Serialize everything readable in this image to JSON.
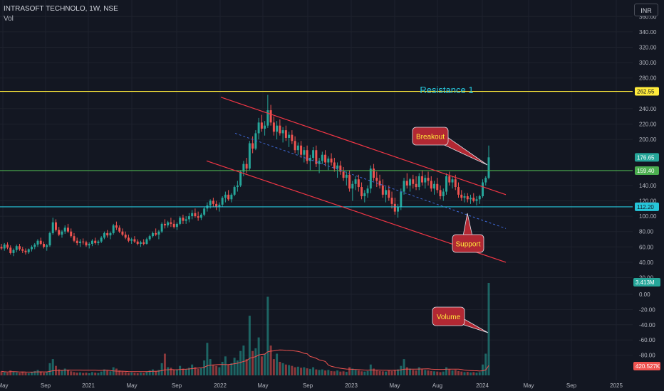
{
  "header": {
    "title": "INTRASOFT TECHNOLO, 1W, NSE",
    "volume_label": "Vol",
    "currency_button": "INR"
  },
  "colors": {
    "background": "#131722",
    "bull": "#26a69a",
    "bear": "#ef5350",
    "resistance": "#ffeb3b",
    "green_level": "#4caf50",
    "support_level": "#26c6da",
    "channel": "#f23645",
    "callout": "#b22833"
  },
  "chart_data": {
    "type": "candlestick",
    "title": "INTRASOFT TECHNOLO, 1W, NSE",
    "y_axis": {
      "ticks": [
        360,
        340,
        320,
        300,
        280,
        240,
        220,
        200,
        140,
        120,
        100,
        80,
        60,
        40,
        20
      ],
      "tick_labels": [
        "360.00",
        "340.00",
        "320.00",
        "300.00",
        "280.00",
        "240.00",
        "220.00",
        "200.00",
        "140.00",
        "120.00",
        "100.00",
        "80.00",
        "60.00",
        "40.00",
        "20.00"
      ],
      "volume_ticks": [
        0,
        -20,
        -40,
        -60,
        -80
      ],
      "volume_tick_labels": [
        "0.00",
        "-20.00",
        "-40.00",
        "-60.00",
        "-80.00"
      ]
    },
    "x_axis": {
      "tick_labels": [
        "May",
        "Sep",
        "2021",
        "May",
        "Sep",
        "2022",
        "May",
        "Sep",
        "2023",
        "May",
        "Aug",
        "2024",
        "May",
        "Sep",
        "2025"
      ]
    },
    "levels": [
      {
        "name": "Resistance 1",
        "value": 262.55,
        "label": "262.55",
        "color": "#ffeb3b"
      },
      {
        "value": 159.4,
        "label": "159.40",
        "color": "#4caf50"
      },
      {
        "value": 112.2,
        "label": "112.20",
        "color": "#26c6da"
      }
    ],
    "last_price": {
      "value": 176.65,
      "label": "176.65"
    },
    "last_volume": {
      "label": "3.413M"
    },
    "volume_ma": {
      "label": "420.527K"
    },
    "annotations": [
      {
        "text": "Resistance 1"
      },
      {
        "text": "Breakout"
      },
      {
        "text": "Support"
      },
      {
        "text": "Volume"
      }
    ],
    "candles": [
      [
        60,
        64,
        56,
        58
      ],
      [
        58,
        65,
        55,
        63
      ],
      [
        63,
        66,
        57,
        59
      ],
      [
        59,
        62,
        50,
        52
      ],
      [
        52,
        58,
        48,
        56
      ],
      [
        56,
        63,
        53,
        61
      ],
      [
        61,
        64,
        55,
        57
      ],
      [
        57,
        60,
        52,
        55
      ],
      [
        55,
        58,
        50,
        53
      ],
      [
        53,
        58,
        51,
        57
      ],
      [
        57,
        62,
        54,
        60
      ],
      [
        60,
        65,
        57,
        63
      ],
      [
        63,
        70,
        60,
        68
      ],
      [
        68,
        72,
        62,
        64
      ],
      [
        64,
        67,
        58,
        60
      ],
      [
        60,
        64,
        55,
        62
      ],
      [
        62,
        80,
        60,
        78
      ],
      [
        78,
        98,
        76,
        92
      ],
      [
        92,
        96,
        80,
        82
      ],
      [
        82,
        86,
        74,
        76
      ],
      [
        76,
        82,
        72,
        80
      ],
      [
        80,
        88,
        77,
        85
      ],
      [
        85,
        90,
        78,
        80
      ],
      [
        80,
        84,
        72,
        74
      ],
      [
        74,
        78,
        66,
        68
      ],
      [
        68,
        72,
        62,
        65
      ],
      [
        65,
        70,
        60,
        67
      ],
      [
        67,
        71,
        63,
        66
      ],
      [
        66,
        68,
        60,
        62
      ],
      [
        62,
        66,
        58,
        64
      ],
      [
        64,
        70,
        61,
        68
      ],
      [
        68,
        72,
        63,
        65
      ],
      [
        65,
        69,
        62,
        67
      ],
      [
        67,
        74,
        65,
        72
      ],
      [
        72,
        80,
        70,
        78
      ],
      [
        78,
        82,
        72,
        75
      ],
      [
        75,
        80,
        70,
        78
      ],
      [
        78,
        90,
        76,
        88
      ],
      [
        88,
        93,
        82,
        85
      ],
      [
        85,
        88,
        78,
        80
      ],
      [
        80,
        84,
        74,
        76
      ],
      [
        76,
        80,
        70,
        72
      ],
      [
        72,
        76,
        66,
        68
      ],
      [
        68,
        72,
        64,
        70
      ],
      [
        70,
        74,
        65,
        67
      ],
      [
        67,
        70,
        62,
        64
      ],
      [
        64,
        68,
        60,
        66
      ],
      [
        66,
        70,
        62,
        64
      ],
      [
        64,
        72,
        63,
        70
      ],
      [
        70,
        76,
        68,
        74
      ],
      [
        74,
        80,
        72,
        78
      ],
      [
        78,
        84,
        74,
        76
      ],
      [
        76,
        82,
        70,
        80
      ],
      [
        80,
        92,
        78,
        90
      ],
      [
        90,
        96,
        84,
        88
      ],
      [
        88,
        94,
        85,
        92
      ],
      [
        92,
        98,
        86,
        90
      ],
      [
        90,
        95,
        84,
        86
      ],
      [
        86,
        92,
        82,
        90
      ],
      [
        90,
        100,
        88,
        98
      ],
      [
        98,
        102,
        90,
        94
      ],
      [
        94,
        100,
        90,
        96
      ],
      [
        96,
        104,
        92,
        100
      ],
      [
        100,
        108,
        96,
        104
      ],
      [
        104,
        110,
        98,
        100
      ],
      [
        100,
        106,
        94,
        98
      ],
      [
        98,
        104,
        95,
        102
      ],
      [
        102,
        112,
        100,
        110
      ],
      [
        110,
        118,
        106,
        114
      ],
      [
        114,
        122,
        110,
        120
      ],
      [
        120,
        124,
        112,
        116
      ],
      [
        116,
        120,
        108,
        112
      ],
      [
        112,
        118,
        106,
        115
      ],
      [
        115,
        126,
        112,
        124
      ],
      [
        124,
        132,
        118,
        128
      ],
      [
        128,
        134,
        120,
        122
      ],
      [
        122,
        130,
        118,
        128
      ],
      [
        128,
        140,
        126,
        138
      ],
      [
        138,
        146,
        132,
        140
      ],
      [
        140,
        160,
        138,
        158
      ],
      [
        158,
        172,
        152,
        168
      ],
      [
        168,
        176,
        156,
        162
      ],
      [
        162,
        198,
        160,
        195
      ],
      [
        195,
        204,
        182,
        188
      ],
      [
        188,
        212,
        186,
        208
      ],
      [
        208,
        228,
        200,
        222
      ],
      [
        222,
        232,
        210,
        214
      ],
      [
        214,
        224,
        205,
        218
      ],
      [
        218,
        258,
        215,
        238
      ],
      [
        238,
        245,
        218,
        222
      ],
      [
        222,
        230,
        205,
        210
      ],
      [
        210,
        224,
        200,
        218
      ],
      [
        218,
        226,
        205,
        208
      ],
      [
        208,
        216,
        196,
        212
      ],
      [
        212,
        218,
        198,
        202
      ],
      [
        202,
        210,
        190,
        206
      ],
      [
        206,
        212,
        194,
        198
      ],
      [
        198,
        204,
        182,
        186
      ],
      [
        186,
        196,
        180,
        192
      ],
      [
        192,
        198,
        176,
        180
      ],
      [
        180,
        190,
        170,
        186
      ],
      [
        186,
        192,
        168,
        172
      ],
      [
        172,
        180,
        160,
        176
      ],
      [
        176,
        190,
        172,
        186
      ],
      [
        186,
        192,
        164,
        168
      ],
      [
        168,
        176,
        156,
        172
      ],
      [
        172,
        184,
        168,
        180
      ],
      [
        180,
        186,
        165,
        170
      ],
      [
        170,
        178,
        160,
        175
      ],
      [
        175,
        182,
        166,
        170
      ],
      [
        170,
        176,
        158,
        162
      ],
      [
        162,
        170,
        150,
        166
      ],
      [
        166,
        172,
        154,
        158
      ],
      [
        158,
        164,
        146,
        150
      ],
      [
        150,
        158,
        140,
        154
      ],
      [
        154,
        160,
        132,
        136
      ],
      [
        136,
        146,
        120,
        142
      ],
      [
        142,
        152,
        134,
        148
      ],
      [
        148,
        154,
        132,
        138
      ],
      [
        138,
        144,
        122,
        126
      ],
      [
        126,
        134,
        118,
        130
      ],
      [
        130,
        140,
        124,
        136
      ],
      [
        136,
        166,
        130,
        162
      ],
      [
        162,
        168,
        146,
        150
      ],
      [
        150,
        158,
        138,
        146
      ],
      [
        146,
        154,
        136,
        140
      ],
      [
        140,
        148,
        124,
        128
      ],
      [
        128,
        138,
        118,
        134
      ],
      [
        134,
        140,
        120,
        124
      ],
      [
        124,
        132,
        110,
        116
      ],
      [
        116,
        124,
        102,
        106
      ],
      [
        106,
        116,
        98,
        112
      ],
      [
        112,
        136,
        108,
        132
      ],
      [
        132,
        150,
        128,
        146
      ],
      [
        146,
        156,
        136,
        140
      ],
      [
        140,
        150,
        132,
        148
      ],
      [
        148,
        154,
        136,
        142
      ],
      [
        142,
        152,
        134,
        138
      ],
      [
        138,
        156,
        134,
        152
      ],
      [
        152,
        160,
        140,
        144
      ],
      [
        144,
        154,
        136,
        150
      ],
      [
        150,
        158,
        140,
        146
      ],
      [
        146,
        152,
        132,
        136
      ],
      [
        136,
        146,
        128,
        142
      ],
      [
        142,
        150,
        130,
        134
      ],
      [
        134,
        140,
        122,
        126
      ],
      [
        126,
        136,
        120,
        132
      ],
      [
        132,
        156,
        128,
        152
      ],
      [
        152,
        158,
        140,
        144
      ],
      [
        144,
        152,
        136,
        148
      ],
      [
        148,
        154,
        134,
        138
      ],
      [
        138,
        144,
        124,
        128
      ],
      [
        128,
        134,
        120,
        124
      ],
      [
        124,
        130,
        118,
        126
      ],
      [
        126,
        130,
        118,
        122
      ],
      [
        122,
        128,
        116,
        124
      ],
      [
        124,
        130,
        118,
        120
      ],
      [
        120,
        126,
        114,
        122
      ],
      [
        122,
        128,
        116,
        126
      ],
      [
        126,
        148,
        124,
        144
      ],
      [
        144,
        152,
        140,
        150
      ],
      [
        150,
        192,
        148,
        176.65
      ]
    ],
    "volume": [
      0.15,
      0.12,
      0.1,
      0.18,
      0.14,
      0.11,
      0.09,
      0.13,
      0.1,
      0.08,
      0.12,
      0.16,
      0.2,
      0.14,
      0.1,
      0.12,
      0.45,
      0.6,
      0.35,
      0.22,
      0.18,
      0.25,
      0.2,
      0.15,
      0.12,
      0.1,
      0.11,
      0.09,
      0.1,
      0.08,
      0.12,
      0.1,
      0.09,
      0.14,
      0.22,
      0.18,
      0.15,
      0.3,
      0.25,
      0.18,
      0.14,
      0.12,
      0.1,
      0.11,
      0.09,
      0.08,
      0.1,
      0.09,
      0.14,
      0.18,
      0.22,
      0.16,
      0.2,
      0.45,
      0.8,
      0.3,
      0.28,
      0.2,
      0.22,
      0.35,
      0.25,
      0.22,
      0.28,
      0.4,
      0.3,
      0.24,
      0.26,
      0.55,
      1.2,
      0.6,
      0.4,
      0.35,
      0.3,
      0.5,
      0.7,
      0.4,
      0.45,
      0.65,
      0.55,
      0.9,
      1.1,
      0.6,
      2.2,
      0.9,
      1.0,
      1.4,
      0.7,
      0.8,
      2.9,
      1.1,
      0.6,
      0.8,
      0.5,
      0.45,
      0.4,
      0.38,
      0.35,
      0.3,
      0.32,
      0.28,
      0.3,
      0.26,
      0.24,
      0.3,
      0.22,
      0.2,
      0.22,
      0.18,
      0.2,
      0.16,
      0.15,
      0.18,
      0.14,
      0.15,
      0.13,
      0.3,
      0.25,
      0.2,
      0.18,
      0.15,
      0.14,
      0.16,
      0.4,
      0.25,
      0.18,
      0.16,
      0.15,
      0.14,
      0.18,
      0.16,
      0.2,
      0.22,
      0.35,
      0.6,
      0.3,
      0.25,
      0.2,
      0.18,
      0.3,
      0.22,
      0.2,
      0.18,
      0.16,
      0.15,
      0.14,
      0.12,
      0.14,
      0.3,
      0.22,
      0.18,
      0.2,
      0.16,
      0.14,
      0.12,
      0.13,
      0.11,
      0.12,
      0.1,
      0.12,
      0.4,
      0.8,
      3.41
    ]
  }
}
